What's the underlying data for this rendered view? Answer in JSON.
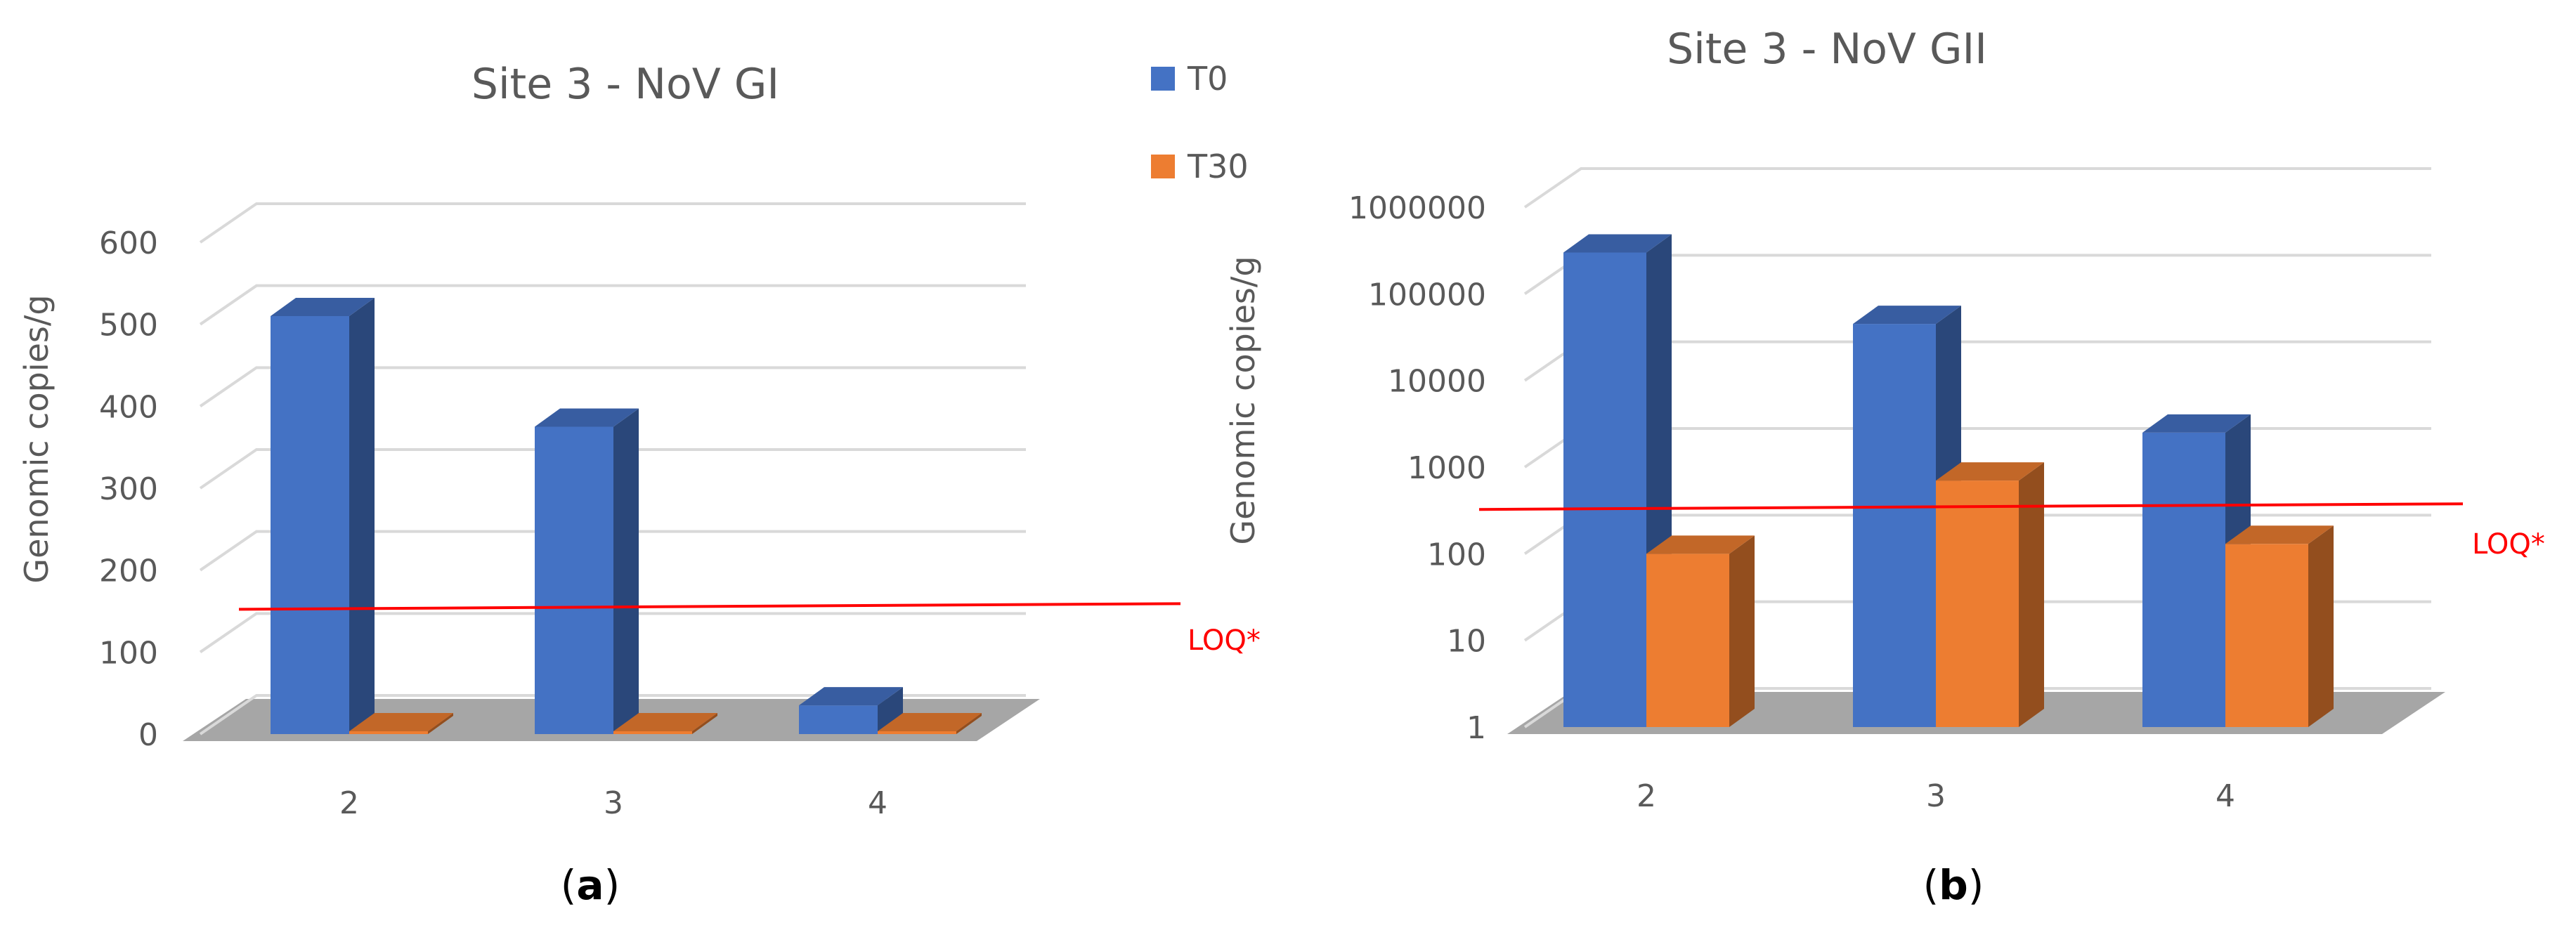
{
  "legend": {
    "items": [
      {
        "name": "T0",
        "color": "#4472C4"
      },
      {
        "name": "T30",
        "color": "#ED7D31"
      }
    ]
  },
  "chart_data": [
    {
      "type": "bar",
      "panel_label": "a",
      "title": "Site 3 - NoV GI",
      "ylabel": "Genomic copies/g",
      "xlabel": "",
      "categories": [
        "2",
        "3",
        "4"
      ],
      "series": [
        {
          "name": "T0",
          "values": [
            510,
            375,
            35
          ]
        },
        {
          "name": "T30",
          "values": [
            0,
            0,
            0
          ]
        }
      ],
      "yscale": "linear",
      "ylim": [
        0,
        600
      ],
      "yticks": [
        "0",
        "100",
        "200",
        "300",
        "400",
        "500",
        "600"
      ],
      "grid": true,
      "reference_line": {
        "label": "LOQ*",
        "value": 130,
        "color": "#FF0000"
      }
    },
    {
      "type": "bar",
      "panel_label": "b",
      "title": "Site 3 - NoV GII",
      "ylabel": "Genomic copies/g",
      "xlabel": "",
      "categories": [
        "2",
        "3",
        "4"
      ],
      "series": [
        {
          "name": "T0",
          "values": [
            300000,
            45000,
            2500
          ]
        },
        {
          "name": "T30",
          "values": [
            100,
            700,
            130
          ]
        }
      ],
      "yscale": "log",
      "ylim": [
        1,
        1000000
      ],
      "yticks": [
        "1",
        "10",
        "100",
        "1000",
        "10000",
        "100000",
        "1000000"
      ],
      "grid": true,
      "reference_line": {
        "label": "LOQ*",
        "value": 200,
        "color": "#FF0000"
      }
    }
  ]
}
